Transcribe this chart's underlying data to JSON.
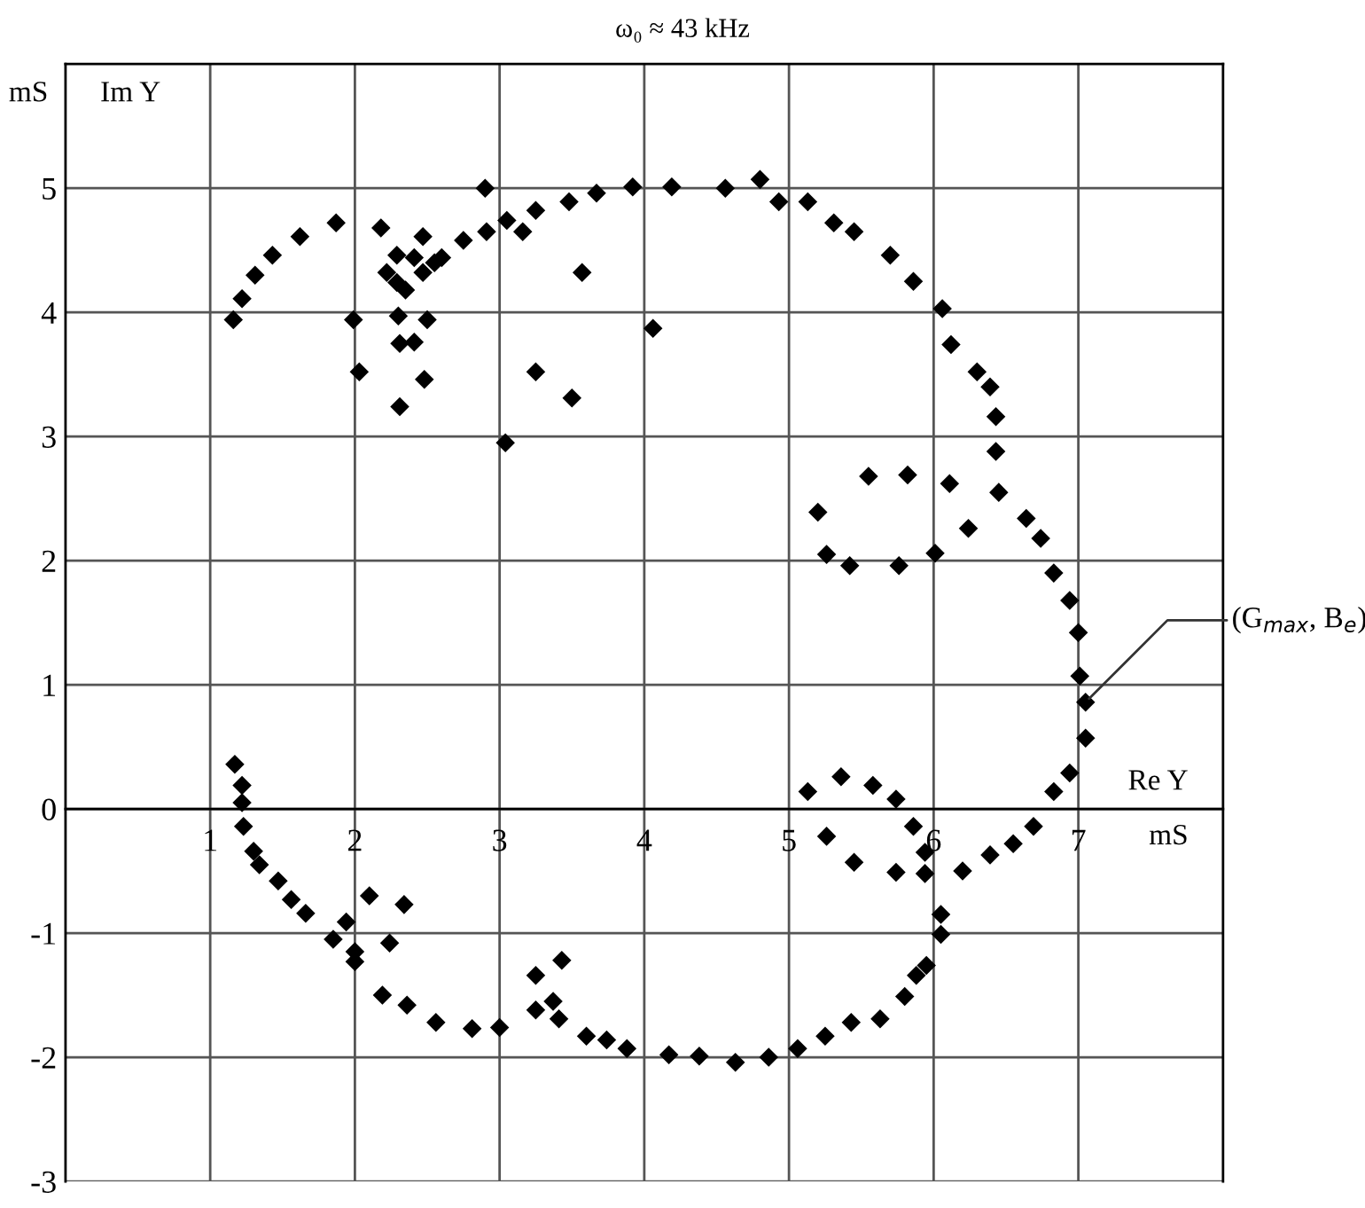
{
  "chart_data": {
    "type": "scatter",
    "title": "ω₀ ≈ 43 kHz",
    "xlabel": "Re Y",
    "ylabel": "Im Y",
    "annotations": [
      "mS",
      "mS",
      {
        "text": "(G$_{max}$, B$_{e}$)",
        "x": 7.05,
        "y": 0.86
      }
    ],
    "xlim": [
      0,
      8
    ],
    "ylim": [
      -3,
      6
    ],
    "xticks": [
      1,
      2,
      3,
      4,
      5,
      6,
      7
    ],
    "yticks": [
      -3,
      -2,
      -1,
      0,
      1,
      2,
      3,
      4,
      5
    ],
    "grid": true,
    "marker": "diamond",
    "series": [
      {
        "color": "#000000",
        "x": [
          2.9,
          1.87,
          1.62,
          1.43,
          1.31,
          1.22,
          1.16,
          2.18,
          2.29,
          2.41,
          2.47,
          2.22,
          2.29,
          2.35,
          2.47,
          2.55,
          2.6,
          2.75,
          2.91,
          3.05,
          3.16,
          3.25,
          3.48,
          3.67,
          3.92,
          4.19,
          3.57,
          1.99,
          2.3,
          2.5,
          2.31,
          2.41,
          2.03,
          2.48,
          2.31,
          3.25,
          3.5,
          3.04,
          4.06,
          4.56,
          4.8,
          4.93,
          5.13,
          5.31,
          5.45,
          5.7,
          5.86,
          6.06,
          6.12,
          6.3,
          6.39,
          6.43,
          6.43,
          6.45,
          6.64,
          6.74,
          6.83,
          6.94,
          7.0,
          7.01,
          7.05,
          7.05,
          6.94,
          6.83,
          5.55,
          5.82,
          6.11,
          6.24,
          5.2,
          5.26,
          5.42,
          5.76,
          6.01,
          5.13,
          5.36,
          5.58,
          5.74,
          5.26,
          5.45,
          5.74,
          5.86,
          5.94,
          5.94,
          6.2,
          6.39,
          6.55,
          6.69,
          6.05,
          6.05,
          5.95,
          5.88,
          5.8,
          5.63,
          5.43,
          5.25,
          5.06,
          4.86,
          4.63,
          4.38,
          1.17,
          1.22,
          1.22,
          1.23,
          1.3,
          1.34,
          1.47,
          1.56,
          1.66,
          1.94,
          1.85,
          2.0,
          2.0,
          2.1,
          2.34,
          2.24,
          2.19,
          2.36,
          2.56,
          2.81,
          3.0,
          3.25,
          3.43,
          3.25,
          3.37,
          3.41,
          3.6,
          3.74,
          3.88,
          4.17
        ],
        "values": [
          5.0,
          4.72,
          4.61,
          4.46,
          4.3,
          4.11,
          3.94,
          4.68,
          4.46,
          4.44,
          4.61,
          4.32,
          4.24,
          4.18,
          4.32,
          4.4,
          4.44,
          4.58,
          4.65,
          4.74,
          4.65,
          4.82,
          4.89,
          4.96,
          5.01,
          5.01,
          4.32,
          3.94,
          3.97,
          3.94,
          3.75,
          3.76,
          3.52,
          3.46,
          3.24,
          3.52,
          3.31,
          2.95,
          3.87,
          5.0,
          5.07,
          4.89,
          4.89,
          4.72,
          4.65,
          4.46,
          4.25,
          4.03,
          3.74,
          3.52,
          3.4,
          3.16,
          2.88,
          2.55,
          2.34,
          2.18,
          1.9,
          1.68,
          1.42,
          1.07,
          0.86,
          0.57,
          0.29,
          0.14,
          2.68,
          2.69,
          2.62,
          2.26,
          2.39,
          2.05,
          1.96,
          1.96,
          2.06,
          0.14,
          0.26,
          0.19,
          0.08,
          -0.22,
          -0.43,
          -0.51,
          -0.14,
          -0.35,
          -0.52,
          -0.5,
          -0.37,
          -0.28,
          -0.14,
          -0.85,
          -1.01,
          -1.26,
          -1.34,
          -1.51,
          -1.69,
          -1.72,
          -1.83,
          -1.93,
          -2.0,
          -2.04,
          -1.99,
          0.36,
          0.19,
          0.05,
          -0.14,
          -0.34,
          -0.45,
          -0.58,
          -0.73,
          -0.84,
          -0.91,
          -1.05,
          -1.15,
          -1.23,
          -0.7,
          -0.77,
          -1.08,
          -1.5,
          -1.58,
          -1.72,
          -1.77,
          -1.76,
          -1.34,
          -1.22,
          -1.62,
          -1.55,
          -1.69,
          -1.83,
          -1.86,
          -1.93,
          -1.98
        ]
      }
    ]
  }
}
